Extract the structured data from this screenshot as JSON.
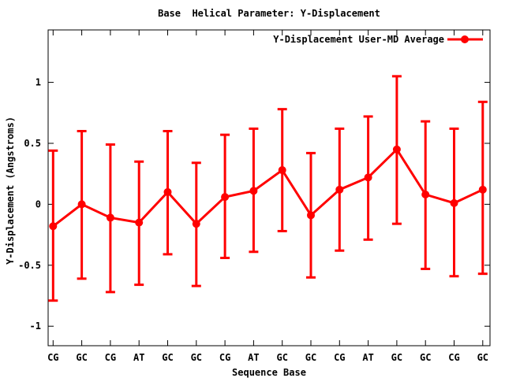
{
  "chart_data": {
    "type": "line",
    "title": "Base  Helical Parameter: Y-Displacement",
    "xlabel": "Sequence Base",
    "ylabel": "Y-Displacement (Angstroms)",
    "legend": {
      "position": "top-right-inside",
      "box": false
    },
    "grid": false,
    "categories": [
      "CG",
      "GC",
      "CG",
      "AT",
      "GC",
      "GC",
      "CG",
      "AT",
      "GC",
      "GC",
      "CG",
      "AT",
      "GC",
      "GC",
      "CG",
      "GC"
    ],
    "series": [
      {
        "name": "Y-Displacement User-MD Average",
        "values": [
          -0.18,
          0.0,
          -0.11,
          -0.15,
          0.1,
          -0.16,
          0.06,
          0.11,
          0.28,
          -0.09,
          0.12,
          0.22,
          0.45,
          0.08,
          0.01,
          0.12
        ],
        "err_high": [
          0.44,
          0.6,
          0.49,
          0.35,
          0.6,
          0.34,
          0.57,
          0.62,
          0.78,
          0.42,
          0.62,
          0.72,
          1.05,
          0.68,
          0.62,
          0.84
        ],
        "err_low": [
          -0.79,
          -0.61,
          -0.72,
          -0.66,
          -0.41,
          -0.67,
          -0.44,
          -0.39,
          -0.22,
          -0.6,
          -0.38,
          -0.29,
          -0.16,
          -0.53,
          -0.59,
          -0.57
        ],
        "marker": "filled-circle",
        "error_bars": true
      }
    ],
    "ylim": [
      -1.16,
      1.43
    ],
    "yticks": {
      "values": [
        1,
        0.5,
        0,
        -0.5,
        -1
      ],
      "labels": [
        "1",
        "0.5",
        "0",
        "-0.5",
        "-1"
      ]
    },
    "colors": {
      "series": "#ff0000",
      "text": "#000000",
      "border": "#000000",
      "background": "#ffffff"
    }
  }
}
